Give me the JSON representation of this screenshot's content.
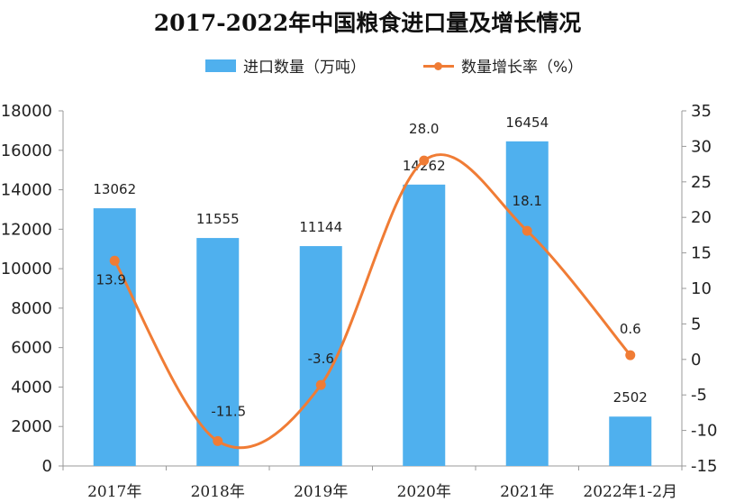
{
  "chart_data": {
    "type": "bar",
    "title": "2017-2022年中国粮食进口量及增长情况",
    "categories": [
      "2017年",
      "2018年",
      "2019年",
      "2020年",
      "2021年",
      "2022年1-2月"
    ],
    "series": [
      {
        "name": "进口数量（万吨）",
        "type": "bar",
        "axis": "left",
        "values": [
          13062,
          11555,
          11144,
          14262,
          16454,
          2502
        ],
        "labels": [
          "13062",
          "11555",
          "11144",
          "14262",
          "16454",
          "2502"
        ],
        "color": "#4fb0ee"
      },
      {
        "name": "数量增长率（%）",
        "type": "line",
        "axis": "right",
        "values": [
          13.9,
          -11.5,
          -3.6,
          28.0,
          18.1,
          0.6
        ],
        "labels": [
          "13.9",
          "-11.5",
          "-3.6",
          "28.0",
          "18.1",
          "0.6"
        ],
        "color": "#f07c35"
      }
    ],
    "y_left": {
      "range": [
        0,
        18000
      ],
      "ticks": [
        "0",
        "2000",
        "4000",
        "6000",
        "8000",
        "10000",
        "12000",
        "14000",
        "16000",
        "18000"
      ]
    },
    "y_right": {
      "range": [
        -15,
        35
      ],
      "ticks": [
        "-15",
        "-10",
        "-5",
        "0",
        "5",
        "10",
        "15",
        "20",
        "25",
        "30",
        "35"
      ]
    },
    "grid": false,
    "legend_position": "top-center"
  }
}
